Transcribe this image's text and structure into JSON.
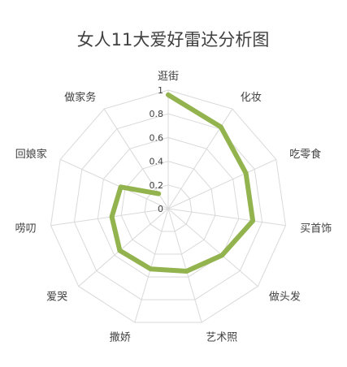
{
  "chart_data": {
    "type": "radar",
    "title": "女人11大爱好雷达分析图",
    "categories": [
      "逛街",
      "化妆",
      "吃零食",
      "买首饰",
      "做头发",
      "艺术照",
      "撒娇",
      "爱哭",
      "唠叨",
      "回娘家",
      "做家务"
    ],
    "series": [
      {
        "values": [
          0.96,
          0.82,
          0.72,
          0.72,
          0.6,
          0.55,
          0.53,
          0.54,
          0.48,
          0.44,
          0.15
        ]
      }
    ],
    "rlim": [
      0,
      1
    ],
    "ticks": [
      "0",
      "0.2",
      "0.4",
      "0.6",
      "0.8",
      "1"
    ],
    "grid": true,
    "legend": false,
    "colors": {
      "series": "#92b34d",
      "grid": "#d9d9d9"
    }
  }
}
